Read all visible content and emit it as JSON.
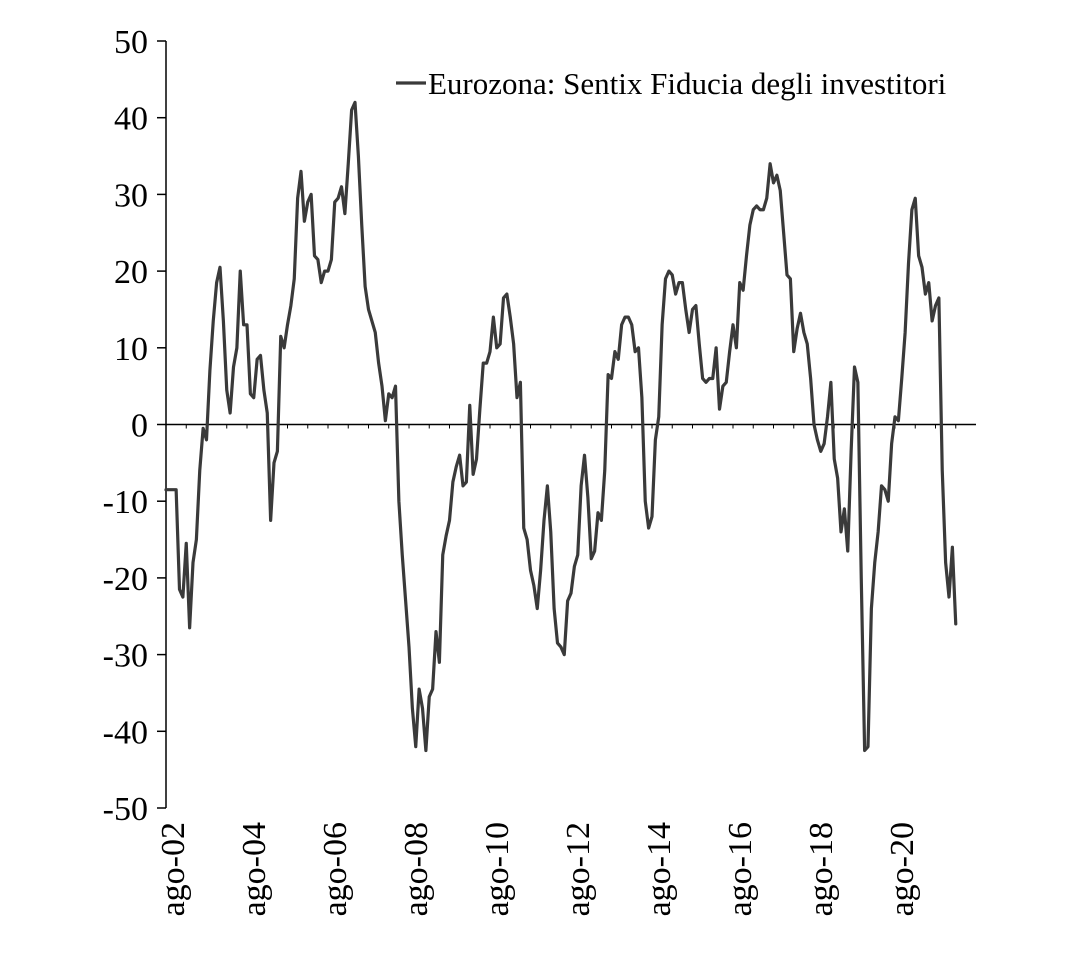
{
  "chart_data": {
    "type": "line",
    "title": "",
    "xlabel": "",
    "ylabel": "",
    "ylim": [
      -50,
      50
    ],
    "yticks": [
      50,
      40,
      30,
      20,
      10,
      0,
      -10,
      -20,
      -30,
      -40,
      -50
    ],
    "xticks": [
      "ago-02",
      "ago-04",
      "ago-06",
      "ago-08",
      "ago-10",
      "ago-12",
      "ago-14",
      "ago-16",
      "ago-18",
      "ago-20"
    ],
    "grid": false,
    "legend_position": "top-right",
    "line_color": "#3a3a3a",
    "axis_color": "#000000",
    "series": [
      {
        "name": "Eurozona: Sentix Fiducia degli investitori",
        "points": [
          [
            "2002-08",
            -8.5
          ],
          [
            "2002-09",
            -8.5
          ],
          [
            "2002-10",
            -8.5
          ],
          [
            "2002-11",
            -8.5
          ],
          [
            "2002-12",
            -21.5
          ],
          [
            "2003-01",
            -22.5
          ],
          [
            "2003-02",
            -15.5
          ],
          [
            "2003-03",
            -26.5
          ],
          [
            "2003-04",
            -18
          ],
          [
            "2003-05",
            -15
          ],
          [
            "2003-06",
            -6
          ],
          [
            "2003-07",
            -0.5
          ],
          [
            "2003-08",
            -2
          ],
          [
            "2003-09",
            7
          ],
          [
            "2003-10",
            13.5
          ],
          [
            "2003-11",
            18.5
          ],
          [
            "2003-12",
            20.5
          ],
          [
            "2004-01",
            13.5
          ],
          [
            "2004-02",
            4.5
          ],
          [
            "2004-03",
            1.5
          ],
          [
            "2004-04",
            7.5
          ],
          [
            "2004-05",
            10
          ],
          [
            "2004-06",
            20
          ],
          [
            "2004-07",
            13
          ],
          [
            "2004-08",
            13
          ],
          [
            "2004-09",
            4
          ],
          [
            "2004-10",
            3.5
          ],
          [
            "2004-11",
            8.5
          ],
          [
            "2004-12",
            9
          ],
          [
            "2005-01",
            4.5
          ],
          [
            "2005-02",
            1.5
          ],
          [
            "2005-03",
            -12.5
          ],
          [
            "2005-04",
            -5
          ],
          [
            "2005-05",
            -3.5
          ],
          [
            "2005-06",
            11.5
          ],
          [
            "2005-07",
            10
          ],
          [
            "2005-08",
            13
          ],
          [
            "2005-09",
            15.5
          ],
          [
            "2005-10",
            19
          ],
          [
            "2005-11",
            29.5
          ],
          [
            "2005-12",
            33
          ],
          [
            "2006-01",
            26.5
          ],
          [
            "2006-02",
            29
          ],
          [
            "2006-03",
            30
          ],
          [
            "2006-04",
            22
          ],
          [
            "2006-05",
            21.5
          ],
          [
            "2006-06",
            18.5
          ],
          [
            "2006-07",
            20
          ],
          [
            "2006-08",
            20
          ],
          [
            "2006-09",
            21.5
          ],
          [
            "2006-10",
            29
          ],
          [
            "2006-11",
            29.5
          ],
          [
            "2006-12",
            31
          ],
          [
            "2007-01",
            27.5
          ],
          [
            "2007-02",
            34
          ],
          [
            "2007-03",
            41
          ],
          [
            "2007-04",
            42
          ],
          [
            "2007-05",
            35
          ],
          [
            "2007-06",
            26
          ],
          [
            "2007-07",
            18
          ],
          [
            "2007-08",
            15
          ],
          [
            "2007-09",
            13.5
          ],
          [
            "2007-10",
            12
          ],
          [
            "2007-11",
            8
          ],
          [
            "2007-12",
            5
          ],
          [
            "2008-01",
            0.5
          ],
          [
            "2008-02",
            4
          ],
          [
            "2008-03",
            3.5
          ],
          [
            "2008-04",
            5
          ],
          [
            "2008-05",
            -10
          ],
          [
            "2008-06",
            -17
          ],
          [
            "2008-07",
            -23
          ],
          [
            "2008-08",
            -29
          ],
          [
            "2008-09",
            -37
          ],
          [
            "2008-10",
            -42
          ],
          [
            "2008-11",
            -34.5
          ],
          [
            "2008-12",
            -37
          ],
          [
            "2009-01",
            -42.5
          ],
          [
            "2009-02",
            -35.5
          ],
          [
            "2009-03",
            -34.5
          ],
          [
            "2009-04",
            -27
          ],
          [
            "2009-05",
            -31
          ],
          [
            "2009-06",
            -17
          ],
          [
            "2009-07",
            -14.5
          ],
          [
            "2009-08",
            -12.5
          ],
          [
            "2009-09",
            -7.5
          ],
          [
            "2009-10",
            -5.5
          ],
          [
            "2009-11",
            -4
          ],
          [
            "2009-12",
            -8
          ],
          [
            "2010-01",
            -7.5
          ],
          [
            "2010-02",
            2.5
          ],
          [
            "2010-03",
            -6.5
          ],
          [
            "2010-04",
            -4.5
          ],
          [
            "2010-05",
            2
          ],
          [
            "2010-06",
            8
          ],
          [
            "2010-07",
            8
          ],
          [
            "2010-08",
            9.5
          ],
          [
            "2010-09",
            14
          ],
          [
            "2010-10",
            10
          ],
          [
            "2010-11",
            10.5
          ],
          [
            "2010-12",
            16.5
          ],
          [
            "2011-01",
            17
          ],
          [
            "2011-02",
            14
          ],
          [
            "2011-03",
            10.5
          ],
          [
            "2011-04",
            3.5
          ],
          [
            "2011-05",
            5.5
          ],
          [
            "2011-06",
            -13.5
          ],
          [
            "2011-07",
            -15
          ],
          [
            "2011-08",
            -19
          ],
          [
            "2011-09",
            -21
          ],
          [
            "2011-10",
            -24
          ],
          [
            "2011-11",
            -19
          ],
          [
            "2011-12",
            -12.5
          ],
          [
            "2012-01",
            -8
          ],
          [
            "2012-02",
            -14
          ],
          [
            "2012-03",
            -24
          ],
          [
            "2012-04",
            -28.5
          ],
          [
            "2012-05",
            -29
          ],
          [
            "2012-06",
            -30
          ],
          [
            "2012-07",
            -23
          ],
          [
            "2012-08",
            -22
          ],
          [
            "2012-09",
            -18.5
          ],
          [
            "2012-10",
            -17
          ],
          [
            "2012-11",
            -8
          ],
          [
            "2012-12",
            -4
          ],
          [
            "2013-01",
            -9.5
          ],
          [
            "2013-02",
            -17.5
          ],
          [
            "2013-03",
            -16.5
          ],
          [
            "2013-04",
            -11.5
          ],
          [
            "2013-05",
            -12.5
          ],
          [
            "2013-06",
            -6
          ],
          [
            "2013-07",
            6.5
          ],
          [
            "2013-08",
            6
          ],
          [
            "2013-09",
            9.5
          ],
          [
            "2013-10",
            8.5
          ],
          [
            "2013-11",
            13
          ],
          [
            "2013-12",
            14
          ],
          [
            "2014-01",
            14
          ],
          [
            "2014-02",
            13
          ],
          [
            "2014-03",
            9.5
          ],
          [
            "2014-04",
            10
          ],
          [
            "2014-05",
            3.5
          ],
          [
            "2014-06",
            -10
          ],
          [
            "2014-07",
            -13.5
          ],
          [
            "2014-08",
            -12
          ],
          [
            "2014-09",
            -2
          ],
          [
            "2014-10",
            1
          ],
          [
            "2014-11",
            13
          ],
          [
            "2014-12",
            19
          ],
          [
            "2015-01",
            20
          ],
          [
            "2015-02",
            19.5
          ],
          [
            "2015-03",
            17
          ],
          [
            "2015-04",
            18.5
          ],
          [
            "2015-05",
            18.5
          ],
          [
            "2015-06",
            15
          ],
          [
            "2015-07",
            12
          ],
          [
            "2015-08",
            15
          ],
          [
            "2015-09",
            15.5
          ],
          [
            "2015-10",
            10.5
          ],
          [
            "2015-11",
            6
          ],
          [
            "2015-12",
            5.5
          ],
          [
            "2016-01",
            6
          ],
          [
            "2016-02",
            6
          ],
          [
            "2016-03",
            10
          ],
          [
            "2016-04",
            2
          ],
          [
            "2016-05",
            5
          ],
          [
            "2016-06",
            5.5
          ],
          [
            "2016-07",
            9.5
          ],
          [
            "2016-08",
            13
          ],
          [
            "2016-09",
            10
          ],
          [
            "2016-10",
            18.5
          ],
          [
            "2016-11",
            17.5
          ],
          [
            "2016-12",
            22
          ],
          [
            "2017-01",
            26
          ],
          [
            "2017-02",
            28
          ],
          [
            "2017-03",
            28.5
          ],
          [
            "2017-04",
            28
          ],
          [
            "2017-05",
            28
          ],
          [
            "2017-06",
            29.5
          ],
          [
            "2017-07",
            34
          ],
          [
            "2017-08",
            31.5
          ],
          [
            "2017-09",
            32.5
          ],
          [
            "2017-10",
            30.5
          ],
          [
            "2017-11",
            25
          ],
          [
            "2017-12",
            19.5
          ],
          [
            "2018-01",
            19
          ],
          [
            "2018-02",
            9.5
          ],
          [
            "2018-03",
            12.5
          ],
          [
            "2018-04",
            14.5
          ],
          [
            "2018-05",
            12
          ],
          [
            "2018-06",
            10.5
          ],
          [
            "2018-07",
            6
          ],
          [
            "2018-08",
            0
          ],
          [
            "2018-09",
            -2
          ],
          [
            "2018-10",
            -3.5
          ],
          [
            "2018-11",
            -2.5
          ],
          [
            "2018-12",
            1
          ],
          [
            "2019-01",
            5.5
          ],
          [
            "2019-02",
            -4.5
          ],
          [
            "2019-03",
            -7
          ],
          [
            "2019-04",
            -14
          ],
          [
            "2019-05",
            -11
          ],
          [
            "2019-06",
            -16.5
          ],
          [
            "2019-07",
            -3.5
          ],
          [
            "2019-08",
            7.5
          ],
          [
            "2019-09",
            5.5
          ],
          [
            "2019-10",
            -20
          ],
          [
            "2019-11",
            -42.5
          ],
          [
            "2019-12",
            -42
          ],
          [
            "2020-01",
            -24
          ],
          [
            "2020-02",
            -18
          ],
          [
            "2020-03",
            -14
          ],
          [
            "2020-04",
            -8
          ],
          [
            "2020-05",
            -8.5
          ],
          [
            "2020-06",
            -10
          ],
          [
            "2020-07",
            -2.5
          ],
          [
            "2020-08",
            1
          ],
          [
            "2020-09",
            0.5
          ],
          [
            "2020-10",
            6
          ],
          [
            "2020-11",
            12
          ],
          [
            "2020-12",
            21
          ],
          [
            "2021-01",
            28
          ],
          [
            "2021-02",
            29.5
          ],
          [
            "2021-03",
            22
          ],
          [
            "2021-04",
            20.5
          ],
          [
            "2021-05",
            17
          ],
          [
            "2021-06",
            18.5
          ],
          [
            "2021-07",
            13.5
          ],
          [
            "2021-08",
            15.5
          ],
          [
            "2021-09",
            16.5
          ],
          [
            "2021-10",
            -6
          ],
          [
            "2021-11",
            -18
          ],
          [
            "2021-12",
            -22.5
          ],
          [
            "2022-01",
            -16
          ],
          [
            "2022-02",
            -26
          ]
        ]
      }
    ]
  }
}
